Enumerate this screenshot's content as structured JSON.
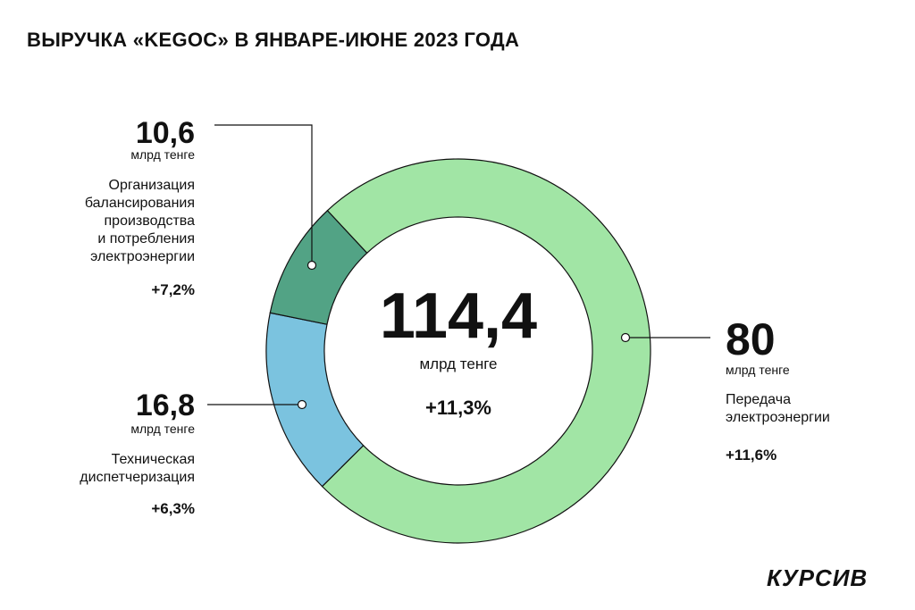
{
  "chart_data": {
    "type": "donut",
    "title": "ВЫРУЧКА «KEGOC» В ЯНВАРЕ-ИЮНЕ 2023 ГОДА",
    "categories": [
      "Передача\nэлектроэнергии",
      "Техническая\nдиспетчеризация",
      "Организация\nбалансирования\nпроизводства\nи потребления\nэлектроэнергии"
    ],
    "values": [
      80,
      16.8,
      10.6
    ],
    "value_labels": [
      "80",
      "16,8",
      "10,6"
    ],
    "colors": [
      "#a1e5a5",
      "#7bc3df",
      "#52a385"
    ],
    "changes": [
      11.6,
      6.3,
      7.2
    ],
    "change_labels": [
      "+11,6%",
      "+6,3%",
      "+7,2%"
    ],
    "unit": "млрд тенге",
    "total": 114.4,
    "total_label": "114,4",
    "total_change": 11.3,
    "total_change_label": "+11,3%"
  },
  "logo": "КУРСИВ"
}
